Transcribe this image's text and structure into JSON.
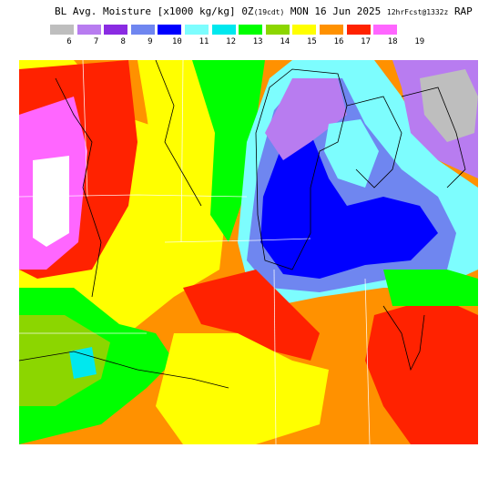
{
  "header": {
    "product": "BL Avg. Moisture [x1000 kg/kg]",
    "time_main": "0Z",
    "time_local": "(19cdt)",
    "date": "MON 16 Jun 2025",
    "forecast": "12hrFcst@1332z",
    "model": "RAP"
  },
  "legend": {
    "labels": [
      "6",
      "7",
      "8",
      "9",
      "10",
      "11",
      "12",
      "13",
      "14",
      "15",
      "16",
      "17",
      "18",
      "19"
    ],
    "colors": [
      "#bebebe",
      "#b87cf0",
      "#8a2be2",
      "#6f86f0",
      "#0000ff",
      "#7dfdfe",
      "#00e8ee",
      "#00ff00",
      "#8cd600",
      "#ffff00",
      "#ff9100",
      "#ff2200",
      "#ff66ff"
    ]
  },
  "chart_data": {
    "type": "heatmap",
    "title": "BL Avg. Moisture [x1000 kg/kg]",
    "units": "x1000 kg/kg",
    "valid": "0Z MON 16 Jun 2025",
    "scale_values": [
      6,
      7,
      8,
      9,
      10,
      11,
      12,
      13,
      14,
      15,
      16,
      17,
      18,
      19
    ]
  }
}
